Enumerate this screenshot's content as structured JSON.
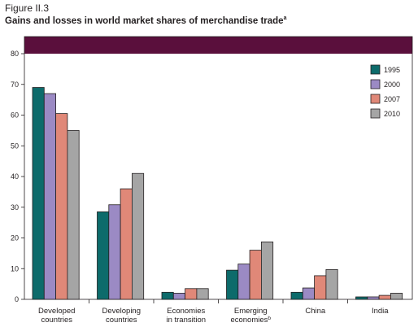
{
  "figure_label": "Figure II.3",
  "title": "Gains and losses in world market shares of merchandise trade",
  "title_note": "a",
  "colors": {
    "header_band": "#5a0f3c",
    "series": [
      "#0d6b6b",
      "#9b8ac4",
      "#e08878",
      "#a5a5a5"
    ]
  },
  "chart_data": {
    "type": "bar",
    "title": "Gains and losses in world market shares of merchandise trade",
    "categories": [
      [
        "Developed",
        "countries"
      ],
      [
        "Developing",
        "countries"
      ],
      [
        "Economies",
        "in transition"
      ],
      [
        "Emerging",
        "economies"
      ],
      [
        "China"
      ],
      [
        "India"
      ]
    ],
    "category_notes": [
      "",
      "",
      "",
      "b",
      "",
      ""
    ],
    "series": [
      {
        "name": "1995",
        "values": [
          69,
          28.5,
          2.3,
          9.5,
          2.3,
          0.8
        ]
      },
      {
        "name": "2000",
        "values": [
          67,
          30.8,
          2.0,
          11.5,
          3.7,
          0.8
        ]
      },
      {
        "name": "2007",
        "values": [
          60.5,
          36,
          3.5,
          16,
          7.7,
          1.3
        ]
      },
      {
        "name": "2010",
        "values": [
          55,
          41,
          3.5,
          18.7,
          9.7,
          2.0
        ]
      }
    ],
    "ylim": [
      0,
      80
    ],
    "yticks": [
      "0",
      "10",
      "20",
      "30",
      "40",
      "50",
      "60",
      "70",
      "80"
    ],
    "legend_position": "top-right",
    "grid": false
  }
}
